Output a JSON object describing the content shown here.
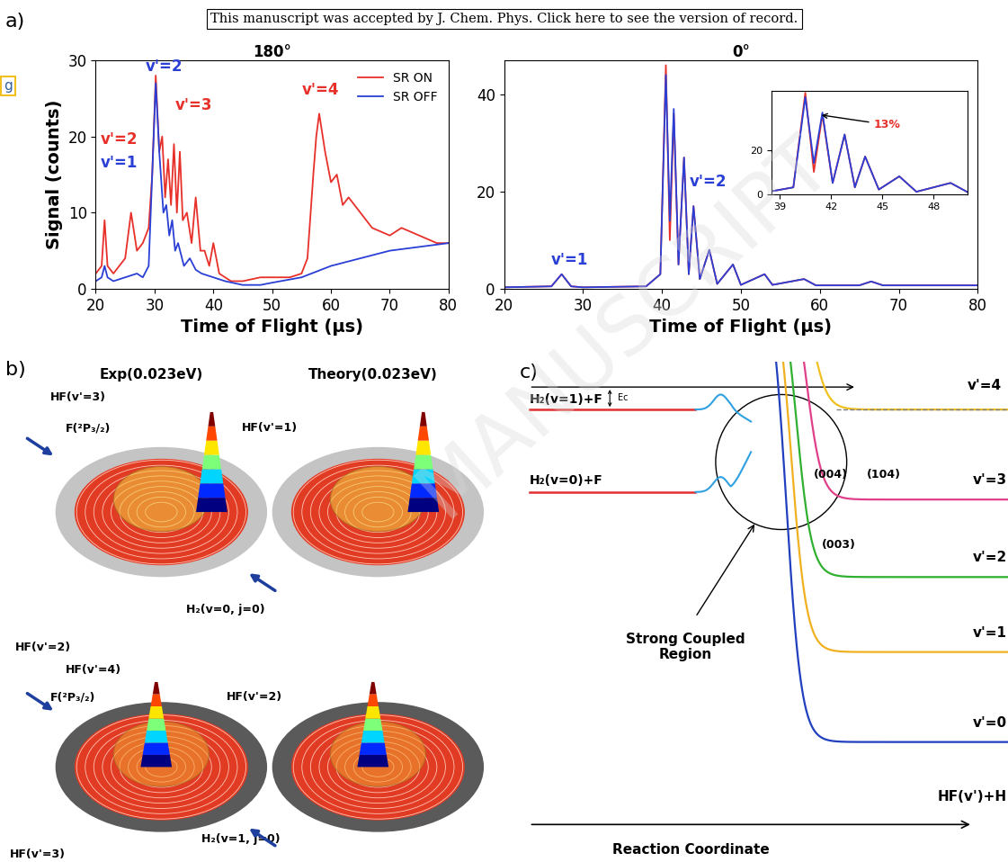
{
  "banner": "This manuscript was accepted by J. Chem. Phys. Click here to see the version of record.",
  "watermark": "MANUSCRIPT",
  "side_text": "g",
  "panel_label": "a)",
  "chart_data": [
    {
      "type": "line",
      "title": "180°",
      "y_label": "Signal (counts)",
      "x_label": "Time of Flight (μs)",
      "xlim": [
        20,
        80
      ],
      "xticks": [
        20,
        30,
        40,
        50,
        60,
        70,
        80
      ],
      "ylim": [
        0,
        30
      ],
      "yticks": [
        0,
        10,
        20,
        30
      ],
      "legend": "upper right",
      "series": [
        {
          "name": "SR ON",
          "color": "#e8302a",
          "x": [
            20,
            21,
            21.5,
            22,
            23,
            24,
            25,
            26,
            27,
            28,
            29,
            29.6,
            30.2,
            30.8,
            31.3,
            31.8,
            32.3,
            32.8,
            33.3,
            33.8,
            34.3,
            34.8,
            35.5,
            36.3,
            37,
            37.8,
            38.5,
            39.3,
            40,
            41,
            43,
            45,
            48,
            50,
            53,
            55,
            56,
            57,
            57.5,
            58,
            59,
            60,
            61,
            62,
            63,
            65,
            67,
            70,
            72,
            75,
            78,
            80
          ],
          "values": [
            2,
            3,
            9,
            3,
            2,
            3,
            4,
            10,
            5,
            6,
            8,
            15,
            28,
            18,
            20,
            12,
            17,
            11,
            19,
            10,
            18,
            9,
            10,
            6,
            12,
            5,
            5,
            3,
            6,
            2,
            1,
            1,
            1.5,
            1.5,
            1.5,
            2,
            4,
            15,
            20,
            23,
            18,
            14,
            15,
            11,
            12,
            10,
            8,
            7,
            8,
            7,
            6,
            6
          ]
        },
        {
          "name": "SR OFF",
          "color": "#2a3fd6",
          "x": [
            20,
            21,
            21.5,
            22,
            23,
            25,
            27,
            28,
            29,
            29.6,
            30.2,
            30.8,
            31.5,
            32,
            32.5,
            33,
            33.5,
            34,
            35,
            36,
            37,
            38,
            40,
            42,
            45,
            48,
            50,
            55,
            60,
            65,
            70,
            75,
            80
          ],
          "values": [
            1,
            1.5,
            3,
            1.5,
            1,
            1.5,
            2,
            1.5,
            3,
            15,
            27,
            18,
            10,
            11,
            7,
            9,
            5,
            6,
            3,
            4,
            2.5,
            2,
            1.5,
            1,
            0.5,
            0.5,
            0.8,
            1.5,
            3,
            4,
            5,
            5.5,
            6
          ]
        }
      ],
      "annotations": [
        {
          "text": "v'=2",
          "x": 20.8,
          "y": 19,
          "color": "#e8302a"
        },
        {
          "text": "v'=1",
          "x": 20.8,
          "y": 16,
          "color": "#2a3fd6"
        },
        {
          "text": "v'=2",
          "x": 28.5,
          "y": 28.6,
          "color": "#2a3fd6"
        },
        {
          "text": "v'=3",
          "x": 33.5,
          "y": 23.5,
          "color": "#e8302a"
        },
        {
          "text": "v'=4",
          "x": 55,
          "y": 25.5,
          "color": "#e8302a"
        }
      ]
    },
    {
      "type": "line",
      "title": "0°",
      "x_label": "Time of Flight (μs)",
      "xlim": [
        20,
        80
      ],
      "xticks": [
        20,
        30,
        40,
        50,
        60,
        70,
        80
      ],
      "ylim": [
        0,
        47
      ],
      "yticks": [
        0,
        20,
        40
      ],
      "x": [
        20,
        26,
        27.3,
        28.5,
        30,
        38,
        39.8,
        40.5,
        41,
        41.5,
        42.1,
        42.8,
        43.4,
        44,
        44.8,
        46,
        47,
        49,
        50,
        53,
        54,
        58,
        59.5,
        65,
        66.5,
        68,
        75,
        80
      ],
      "series": [
        {
          "name": "SR ON",
          "color": "#e8302a",
          "values": [
            0.3,
            0.5,
            3,
            0.5,
            0.3,
            0.5,
            3,
            46,
            10,
            36,
            5,
            27,
            3,
            17,
            2,
            8,
            1,
            5,
            0.8,
            3,
            0.8,
            2,
            0.7,
            0.7,
            1.5,
            0.7,
            0.7,
            0.7
          ]
        },
        {
          "name": "SR OFF",
          "color": "#2a3fd6",
          "values": [
            0.3,
            0.5,
            3,
            0.5,
            0.3,
            0.5,
            3,
            44,
            14,
            37,
            5,
            27,
            3,
            17,
            2,
            8,
            1,
            5,
            0.8,
            3,
            0.8,
            2,
            0.7,
            0.7,
            1.5,
            0.7,
            0.7,
            0.7
          ]
        }
      ],
      "annotations": [
        {
          "text": "v'=1",
          "x": 26,
          "y": 5,
          "color": "#2a3fd6"
        },
        {
          "text": "v'=2",
          "x": 43.5,
          "y": 21,
          "color": "#2a3fd6"
        }
      ],
      "inset": {
        "xlim": [
          38.5,
          50
        ],
        "xticks": [
          39,
          42,
          45,
          48
        ],
        "ylim": [
          0,
          47
        ],
        "yticks": [
          0,
          20
        ],
        "annotations": [
          {
            "text": "13%",
            "x": 44.5,
            "y": 30,
            "arrow_x": 41.3,
            "arrow_y": 36,
            "color": "#e8302a"
          }
        ]
      }
    }
  ],
  "panel_b": {
    "label": "b)",
    "titles": [
      "Exp(0.023eV)",
      "Theory(0.023eV)"
    ],
    "labels_top": [
      "HF(v'=3)",
      "F(²P₃/₂)",
      "HF(v'=1)",
      "HF(v'=2)",
      "H₂(v=0, j=0)"
    ],
    "labels_bottom": [
      "HF(v'=4)",
      "F(²P₃/₂)",
      "HF(v'=2)",
      "HF(v'=3)",
      "H₂(v=1, j=0)"
    ]
  },
  "panel_c": {
    "label": "c)",
    "reactants": [
      "H₂(v=1)+F",
      "H₂(v=0)+F"
    ],
    "ec": "Ec",
    "products": [
      "v'=4",
      "v'=3",
      "v'=2",
      "v'=1",
      "v'=0"
    ],
    "resonances": [
      "(004)",
      "(104)",
      "(003)"
    ],
    "region": "Strong Coupled\nRegion",
    "product_channel": "HF(v')+H",
    "coordinate": "Reaction Coordinate"
  }
}
